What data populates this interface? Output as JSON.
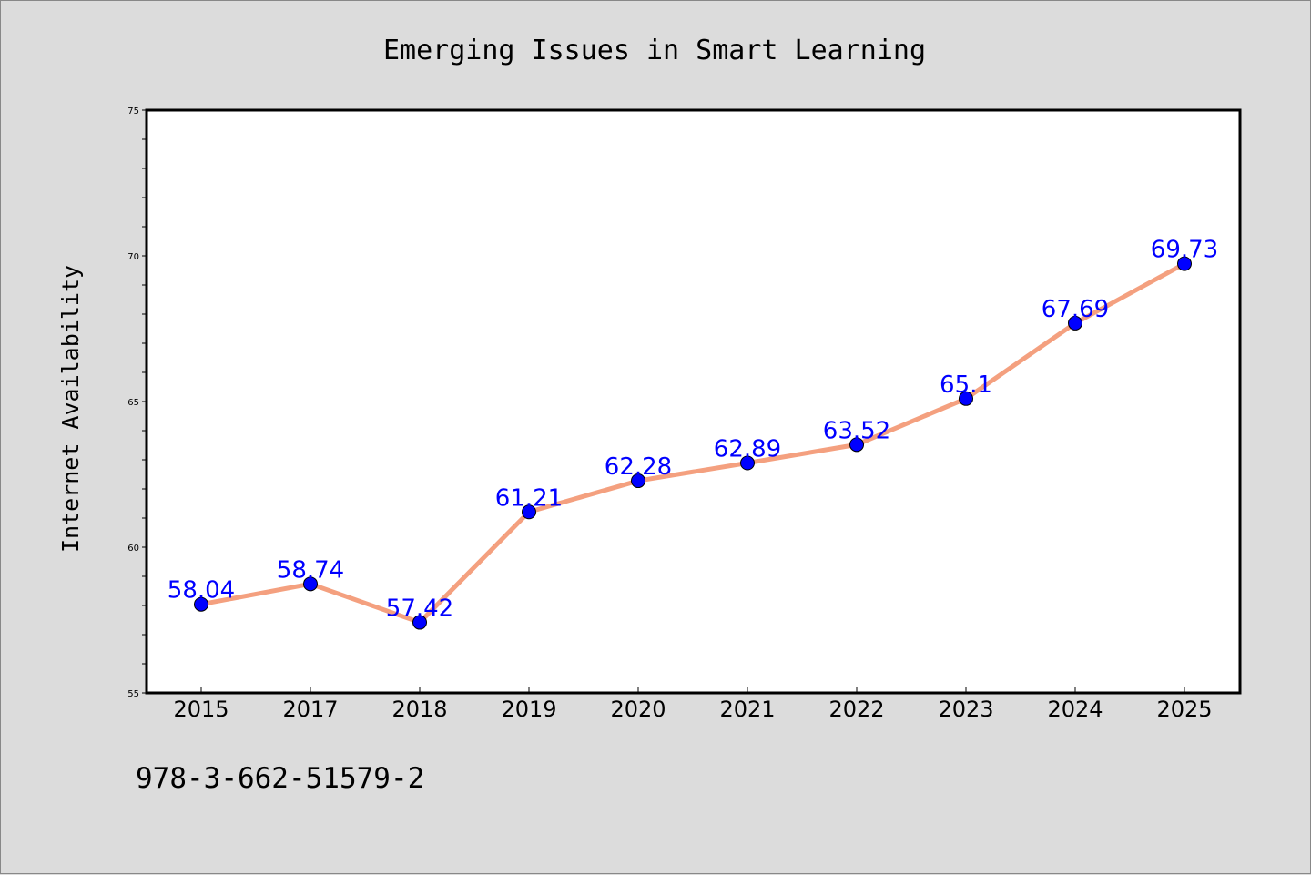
{
  "chart_data": {
    "type": "line",
    "title": "Emerging Issues in Smart Learning",
    "xlabel": "",
    "ylabel": "Internet Availability",
    "categories": [
      "2015",
      "2017",
      "2018",
      "2019",
      "2020",
      "2021",
      "2022",
      "2023",
      "2024",
      "2025"
    ],
    "series": [
      {
        "values": [
          58.04,
          58.74,
          57.42,
          61.21,
          62.28,
          62.89,
          63.52,
          65.1,
          67.69,
          69.73
        ],
        "data_labels": [
          "58.04",
          "58.74",
          "57.42",
          "61.21",
          "62.28",
          "62.89",
          "63.52",
          "65.1",
          "67.69",
          "69.73"
        ],
        "line_color": "#f4a07f",
        "marker_color": "#0000ff"
      }
    ],
    "ylim": [
      55,
      75
    ],
    "yticks": [
      "55",
      "60",
      "65",
      "70",
      "75"
    ],
    "grid": false,
    "legend": "none",
    "label_color": "#0000ff"
  },
  "caption": "978-3-662-51579-2",
  "colors": {
    "background": "#dcdcdc",
    "plot_background": "#ffffff"
  }
}
